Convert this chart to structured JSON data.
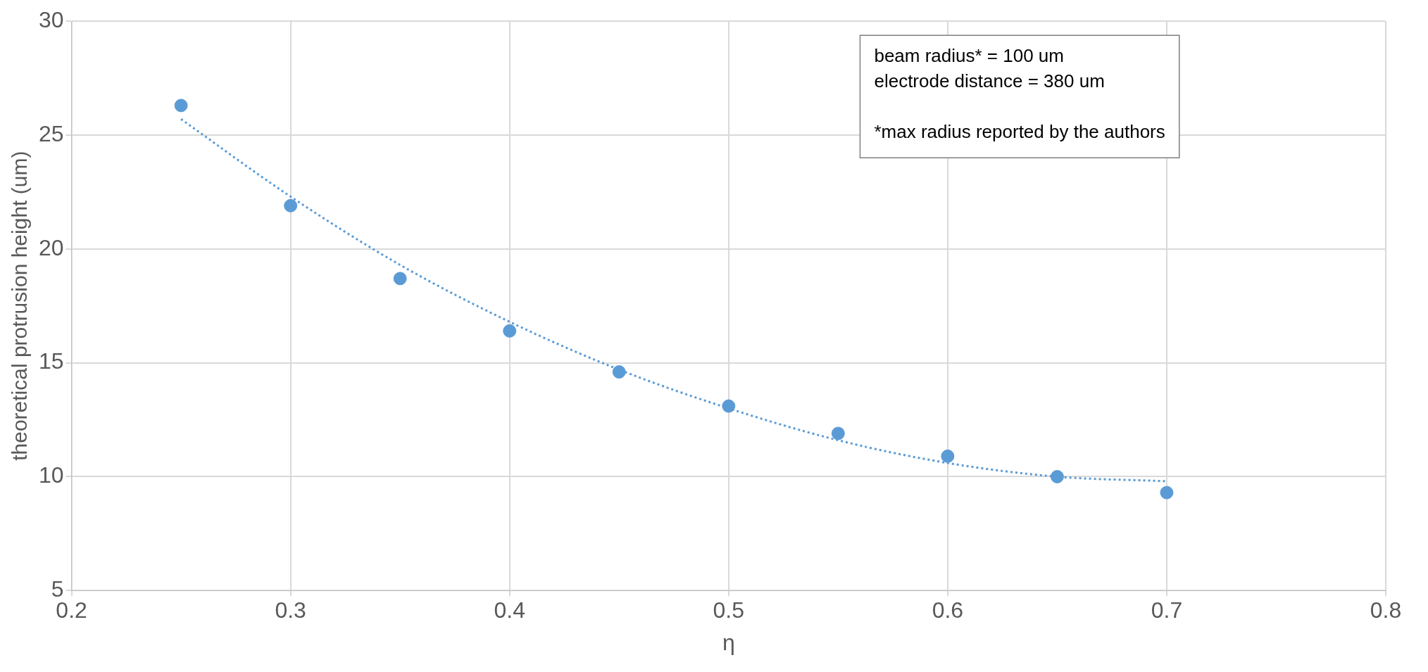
{
  "chart_data": {
    "type": "scatter",
    "xlabel": "η",
    "ylabel": "theoretical protrusion height (um)",
    "xlim": [
      0.2,
      0.8
    ],
    "xticks": [
      0.2,
      0.3,
      0.4,
      0.5,
      0.6,
      0.7,
      0.8
    ],
    "ylim": [
      5,
      30
    ],
    "yticks": [
      5,
      10,
      15,
      20,
      25,
      30
    ],
    "grid": true,
    "legend": false,
    "series": [
      {
        "type": "scatter",
        "color": "#5b9bd5",
        "marker": "circle",
        "x": [
          0.25,
          0.3,
          0.35,
          0.4,
          0.45,
          0.5,
          0.55,
          0.6,
          0.65,
          0.7
        ],
        "values": [
          26.3,
          21.9,
          18.7,
          16.4,
          14.6,
          13.1,
          11.9,
          10.9,
          10.0,
          9.3
        ]
      },
      {
        "type": "line",
        "color": "#5b9bd5",
        "marker": "none",
        "line_style": "dotted",
        "x": [
          0.25,
          0.3,
          0.35,
          0.4,
          0.45,
          0.5,
          0.55,
          0.6,
          0.65,
          0.7
        ],
        "values": [
          25.7,
          22.3,
          19.3,
          16.8,
          14.7,
          13.0,
          11.6,
          10.6,
          10.0,
          9.8
        ]
      }
    ],
    "annotations": [
      "beam radius* = 100 um",
      "electrode distance = 380 um",
      "*max radius reported by the authors"
    ]
  }
}
